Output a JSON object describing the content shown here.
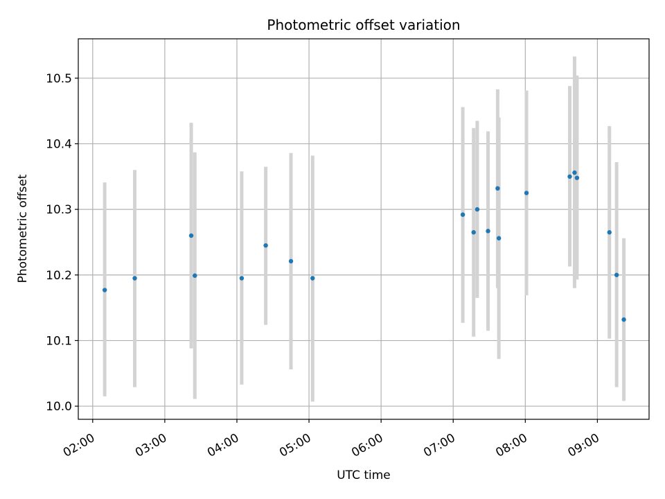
{
  "chart_data": {
    "type": "scatter",
    "title": "Photometric offset variation",
    "xlabel": "UTC time",
    "ylabel": "Photometric offset",
    "x_ticks": [
      "02:00",
      "03:00",
      "04:00",
      "05:00",
      "06:00",
      "07:00",
      "08:00",
      "09:00"
    ],
    "y_ticks": [
      "10.0",
      "10.1",
      "10.2",
      "10.3",
      "10.4",
      "10.5"
    ],
    "xlim": [
      "01:48",
      "09:43"
    ],
    "ylim": [
      9.98,
      10.56
    ],
    "grid": true,
    "colors": {
      "point": "#1f77b4",
      "errorbar": "#d3d3d3",
      "grid": "#b0b0b0"
    },
    "points": [
      {
        "x": "02:10",
        "y": 10.177,
        "yerr_low": 10.015,
        "yerr_high": 10.341
      },
      {
        "x": "02:35",
        "y": 10.195,
        "yerr_low": 10.029,
        "yerr_high": 10.36
      },
      {
        "x": "03:22",
        "y": 10.26,
        "yerr_low": 10.088,
        "yerr_high": 10.432
      },
      {
        "x": "03:25",
        "y": 10.199,
        "yerr_low": 10.011,
        "yerr_high": 10.387
      },
      {
        "x": "04:04",
        "y": 10.195,
        "yerr_low": 10.033,
        "yerr_high": 10.358
      },
      {
        "x": "04:24",
        "y": 10.245,
        "yerr_low": 10.124,
        "yerr_high": 10.365
      },
      {
        "x": "04:45",
        "y": 10.221,
        "yerr_low": 10.056,
        "yerr_high": 10.386
      },
      {
        "x": "05:03",
        "y": 10.195,
        "yerr_low": 10.007,
        "yerr_high": 10.382
      },
      {
        "x": "07:08",
        "y": 10.292,
        "yerr_low": 10.127,
        "yerr_high": 10.456
      },
      {
        "x": "07:17",
        "y": 10.265,
        "yerr_low": 10.106,
        "yerr_high": 10.424
      },
      {
        "x": "07:20",
        "y": 10.3,
        "yerr_low": 10.165,
        "yerr_high": 10.435
      },
      {
        "x": "07:29",
        "y": 10.267,
        "yerr_low": 10.115,
        "yerr_high": 10.419
      },
      {
        "x": "07:37",
        "y": 10.332,
        "yerr_low": 10.18,
        "yerr_high": 10.483
      },
      {
        "x": "07:38",
        "y": 10.256,
        "yerr_low": 10.072,
        "yerr_high": 10.44
      },
      {
        "x": "08:01",
        "y": 10.325,
        "yerr_low": 10.169,
        "yerr_high": 10.481
      },
      {
        "x": "08:37",
        "y": 10.35,
        "yerr_low": 10.213,
        "yerr_high": 10.488
      },
      {
        "x": "08:41",
        "y": 10.356,
        "yerr_low": 10.18,
        "yerr_high": 10.533
      },
      {
        "x": "08:43",
        "y": 10.348,
        "yerr_low": 10.193,
        "yerr_high": 10.504
      },
      {
        "x": "09:10",
        "y": 10.265,
        "yerr_low": 10.103,
        "yerr_high": 10.427
      },
      {
        "x": "09:16",
        "y": 10.2,
        "yerr_low": 10.029,
        "yerr_high": 10.372
      },
      {
        "x": "09:22",
        "y": 10.132,
        "yerr_low": 10.008,
        "yerr_high": 10.256
      }
    ]
  }
}
